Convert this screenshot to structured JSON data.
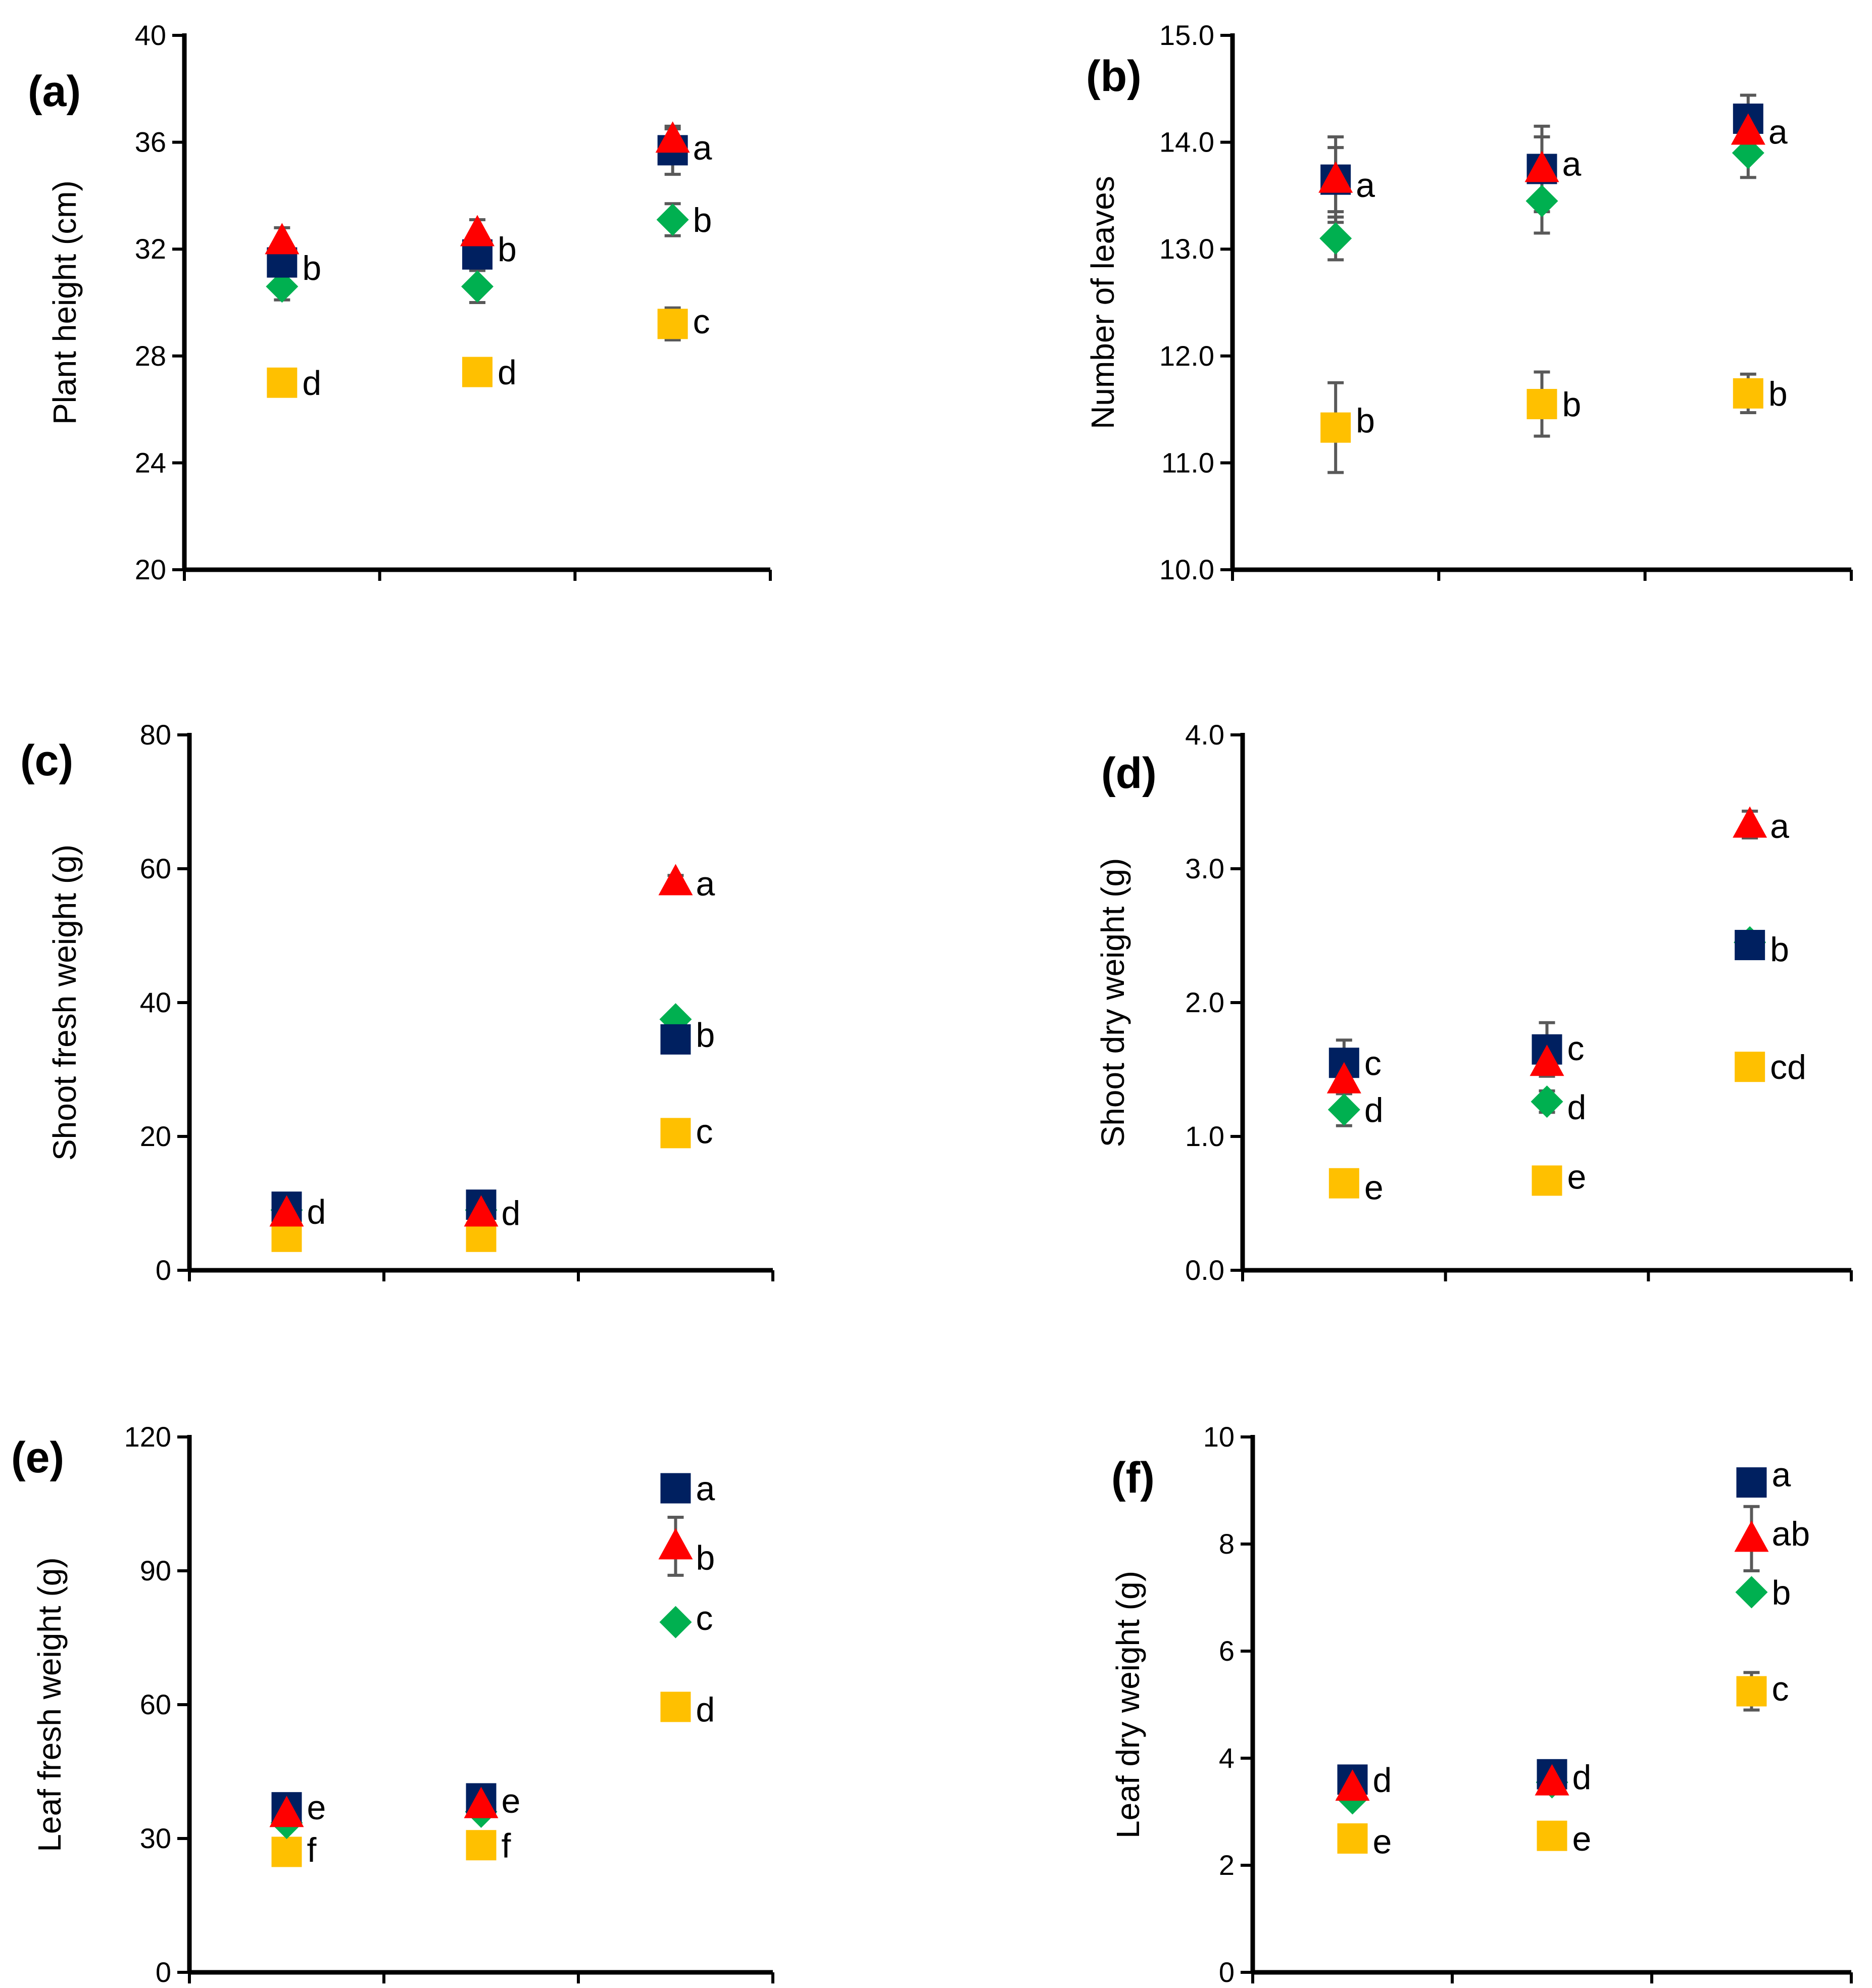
{
  "chart_data": [
    {
      "type": "scatter",
      "panel_label": "(a)",
      "ylabel": "Plant height (cm)",
      "ylim": [
        20,
        40
      ],
      "yticks": [
        20,
        24,
        28,
        32,
        36,
        40
      ],
      "ytick_labels": [
        "20",
        "24",
        "28",
        "32",
        "36",
        "40"
      ],
      "x": [
        1,
        2,
        3
      ],
      "series": [
        {
          "marker": "square",
          "color": "#002060",
          "values": [
            31.5,
            31.8,
            35.7
          ],
          "errors": [
            0.4,
            0.5,
            0.9
          ]
        },
        {
          "marker": "triangle",
          "color": "#ff0000",
          "values": [
            32.3,
            32.6,
            36.1
          ],
          "errors": [
            0.5,
            0.5,
            0.4
          ]
        },
        {
          "marker": "diamond",
          "color": "#00b050",
          "values": [
            30.6,
            30.6,
            33.1
          ],
          "errors": [
            0.5,
            0.6,
            0.6
          ]
        },
        {
          "marker": "square",
          "color": "#ffc000",
          "values": [
            27.0,
            27.4,
            29.2
          ],
          "errors": [
            0.3,
            0.3,
            0.6
          ]
        }
      ],
      "annotations": [
        {
          "x": 1,
          "y": 31.3,
          "text": "b"
        },
        {
          "x": 1,
          "y": 27.0,
          "text": "d"
        },
        {
          "x": 2,
          "y": 32.0,
          "text": "b"
        },
        {
          "x": 2,
          "y": 27.4,
          "text": "d"
        },
        {
          "x": 3,
          "y": 35.8,
          "text": "a"
        },
        {
          "x": 3,
          "y": 33.1,
          "text": "b"
        },
        {
          "x": 3,
          "y": 29.3,
          "text": "c"
        }
      ]
    },
    {
      "type": "scatter",
      "panel_label": "(b)",
      "ylabel": "Number of leaves",
      "ylim": [
        10.0,
        15.0
      ],
      "yticks": [
        10,
        11,
        12,
        13,
        14,
        15
      ],
      "ytick_labels": [
        "10.0",
        "11.0",
        "12.0",
        "13.0",
        "14.0",
        "15.0"
      ],
      "x": [
        1,
        2,
        3
      ],
      "series": [
        {
          "marker": "square",
          "color": "#002060",
          "values": [
            13.65,
            13.75,
            14.22
          ],
          "errors": [
            0.4,
            0.4,
            0.22
          ]
        },
        {
          "marker": "triangle",
          "color": "#ff0000",
          "values": [
            13.65,
            13.75,
            14.1
          ],
          "errors": [
            0.3,
            0.3,
            0.2
          ]
        },
        {
          "marker": "diamond",
          "color": "#00b050",
          "values": [
            13.1,
            13.45,
            13.9
          ],
          "errors": [
            0.2,
            0.3,
            0.23
          ]
        },
        {
          "marker": "square",
          "color": "#ffc000",
          "values": [
            11.33,
            11.55,
            11.65
          ],
          "errors": [
            0.42,
            0.3,
            0.18
          ]
        }
      ],
      "annotations": [
        {
          "x": 1,
          "y": 13.6,
          "text": "a"
        },
        {
          "x": 1,
          "y": 11.4,
          "text": "b"
        },
        {
          "x": 2,
          "y": 13.8,
          "text": "a"
        },
        {
          "x": 2,
          "y": 11.55,
          "text": "b"
        },
        {
          "x": 3,
          "y": 14.1,
          "text": "a"
        },
        {
          "x": 3,
          "y": 11.65,
          "text": "b"
        }
      ]
    },
    {
      "type": "scatter",
      "panel_label": "(c)",
      "ylabel": "Shoot fresh weight (g)",
      "ylim": [
        0,
        80
      ],
      "yticks": [
        0,
        20,
        40,
        60,
        80
      ],
      "ytick_labels": [
        "0",
        "20",
        "40",
        "60",
        "80"
      ],
      "x": [
        1,
        2,
        3
      ],
      "series": [
        {
          "marker": "square",
          "color": "#002060",
          "values": [
            9.5,
            9.8,
            34.5
          ],
          "errors": [
            0.5,
            0.5,
            1.0
          ]
        },
        {
          "marker": "triangle",
          "color": "#ff0000",
          "values": [
            8.5,
            8.5,
            58.0
          ],
          "errors": [
            0.5,
            0.5,
            1.0
          ]
        },
        {
          "marker": "diamond",
          "color": "#00b050",
          "values": [
            9.0,
            9.0,
            37.5
          ],
          "errors": [
            0.5,
            0.5,
            1.0
          ]
        },
        {
          "marker": "square",
          "color": "#ffc000",
          "values": [
            5.0,
            5.0,
            20.5
          ],
          "errors": [
            0.3,
            0.3,
            0.5
          ]
        }
      ],
      "annotations": [
        {
          "x": 1,
          "y": 8.8,
          "text": "d"
        },
        {
          "x": 2,
          "y": 8.6,
          "text": "d"
        },
        {
          "x": 3,
          "y": 57.8,
          "text": "a"
        },
        {
          "x": 3,
          "y": 35.2,
          "text": "b"
        },
        {
          "x": 3,
          "y": 20.8,
          "text": "c"
        }
      ]
    },
    {
      "type": "scatter",
      "panel_label": "(d)",
      "ylabel": "Shoot dry weight (g)",
      "ylim": [
        0.0,
        4.0
      ],
      "yticks": [
        0,
        1,
        2,
        3,
        4
      ],
      "ytick_labels": [
        "0.0",
        "1.0",
        "2.0",
        "3.0",
        "4.0"
      ],
      "x": [
        1,
        2,
        3
      ],
      "series": [
        {
          "marker": "square",
          "color": "#002060",
          "values": [
            1.55,
            1.65,
            2.43
          ],
          "errors": [
            0.17,
            0.2,
            0.06
          ]
        },
        {
          "marker": "triangle",
          "color": "#ff0000",
          "values": [
            1.42,
            1.55,
            3.33
          ],
          "errors": [
            0.1,
            0.1,
            0.1
          ]
        },
        {
          "marker": "diamond",
          "color": "#00b050",
          "values": [
            1.2,
            1.26,
            2.45
          ],
          "errors": [
            0.12,
            0.08,
            0.05
          ]
        },
        {
          "marker": "square",
          "color": "#ffc000",
          "values": [
            0.65,
            0.67,
            1.52
          ],
          "errors": [
            0.05,
            0.06,
            0.04
          ]
        }
      ],
      "annotations": [
        {
          "x": 1,
          "y": 1.55,
          "text": "c"
        },
        {
          "x": 1,
          "y": 1.2,
          "text": "d"
        },
        {
          "x": 1,
          "y": 0.62,
          "text": "e"
        },
        {
          "x": 2,
          "y": 1.66,
          "text": "c"
        },
        {
          "x": 2,
          "y": 1.22,
          "text": "d"
        },
        {
          "x": 2,
          "y": 0.7,
          "text": "e"
        },
        {
          "x": 3,
          "y": 3.32,
          "text": "a"
        },
        {
          "x": 3,
          "y": 2.4,
          "text": "b"
        },
        {
          "x": 3,
          "y": 1.52,
          "text": "cd"
        }
      ]
    },
    {
      "type": "scatter",
      "panel_label": "(e)",
      "ylabel": "Leaf fresh weight (g)",
      "ylim": [
        0,
        120
      ],
      "yticks": [
        0,
        30,
        60,
        90,
        120
      ],
      "ytick_labels": [
        "0",
        "30",
        "60",
        "90",
        "120"
      ],
      "x": [
        1,
        2,
        3
      ],
      "series": [
        {
          "marker": "square",
          "color": "#002060",
          "values": [
            37.0,
            39.0,
            108.5
          ],
          "errors": [
            1.0,
            1.0,
            1.0
          ]
        },
        {
          "marker": "triangle",
          "color": "#ff0000",
          "values": [
            35.5,
            37.5,
            95.5
          ],
          "errors": [
            1.0,
            1.0,
            6.5
          ]
        },
        {
          "marker": "diamond",
          "color": "#00b050",
          "values": [
            33.5,
            36.0,
            78.5
          ],
          "errors": [
            1.0,
            1.0,
            1.5
          ]
        },
        {
          "marker": "square",
          "color": "#ffc000",
          "values": [
            27.0,
            28.5,
            59.5
          ],
          "errors": [
            1.0,
            1.0,
            3.0
          ]
        }
      ],
      "annotations": [
        {
          "x": 1,
          "y": 37.0,
          "text": "e"
        },
        {
          "x": 1,
          "y": 27.5,
          "text": "f"
        },
        {
          "x": 2,
          "y": 38.5,
          "text": "e"
        },
        {
          "x": 2,
          "y": 28.5,
          "text": "f"
        },
        {
          "x": 3,
          "y": 108.5,
          "text": "a"
        },
        {
          "x": 3,
          "y": 93.0,
          "text": "b"
        },
        {
          "x": 3,
          "y": 79.5,
          "text": "c"
        },
        {
          "x": 3,
          "y": 59.0,
          "text": "d"
        }
      ]
    },
    {
      "type": "scatter",
      "panel_label": "(f)",
      "ylabel": "Leaf dry weight (g)",
      "ylim": [
        0,
        10
      ],
      "yticks": [
        0,
        2,
        4,
        6,
        8,
        10
      ],
      "ytick_labels": [
        "0",
        "2",
        "4",
        "6",
        "8",
        "10"
      ],
      "x": [
        1,
        2,
        3
      ],
      "series": [
        {
          "marker": "square",
          "color": "#002060",
          "values": [
            3.6,
            3.7,
            9.15
          ],
          "errors": [
            0.1,
            0.1,
            0.12
          ]
        },
        {
          "marker": "triangle",
          "color": "#ff0000",
          "values": [
            3.45,
            3.55,
            8.1
          ],
          "errors": [
            0.1,
            0.1,
            0.6
          ]
        },
        {
          "marker": "diamond",
          "color": "#00b050",
          "values": [
            3.25,
            3.55,
            7.1
          ],
          "errors": [
            0.1,
            0.1,
            0.12
          ]
        },
        {
          "marker": "square",
          "color": "#ffc000",
          "values": [
            2.5,
            2.55,
            5.25
          ],
          "errors": [
            0.1,
            0.1,
            0.35
          ]
        }
      ],
      "annotations": [
        {
          "x": 1,
          "y": 3.6,
          "text": "d"
        },
        {
          "x": 1,
          "y": 2.45,
          "text": "e"
        },
        {
          "x": 2,
          "y": 3.65,
          "text": "d"
        },
        {
          "x": 2,
          "y": 2.5,
          "text": "e"
        },
        {
          "x": 3,
          "y": 9.3,
          "text": "a"
        },
        {
          "x": 3,
          "y": 8.2,
          "text": "ab"
        },
        {
          "x": 3,
          "y": 7.1,
          "text": "b"
        },
        {
          "x": 3,
          "y": 5.3,
          "text": "c"
        }
      ]
    }
  ]
}
